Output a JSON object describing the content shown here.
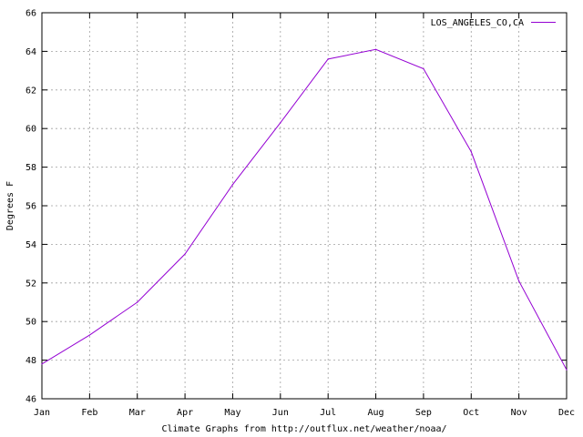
{
  "chart_data": {
    "type": "line",
    "categories": [
      "Jan",
      "Feb",
      "Mar",
      "Apr",
      "May",
      "Jun",
      "Jul",
      "Aug",
      "Sep",
      "Oct",
      "Nov",
      "Dec"
    ],
    "series": [
      {
        "name": "LOS_ANGELES_CO,CA",
        "color": "#9400d3",
        "values": [
          47.8,
          49.3,
          51.0,
          53.5,
          57.1,
          60.3,
          63.6,
          64.1,
          63.1,
          58.8,
          52.1,
          47.5
        ]
      }
    ],
    "title": "",
    "xlabel": "Climate Graphs from http://outflux.net/weather/noaa/",
    "ylabel": "Degrees F",
    "ylim": [
      46,
      66
    ],
    "yticks": [
      "46",
      "48",
      "50",
      "52",
      "54",
      "56",
      "58",
      "60",
      "62",
      "64",
      "66"
    ],
    "grid": true,
    "legend": "top-right"
  }
}
